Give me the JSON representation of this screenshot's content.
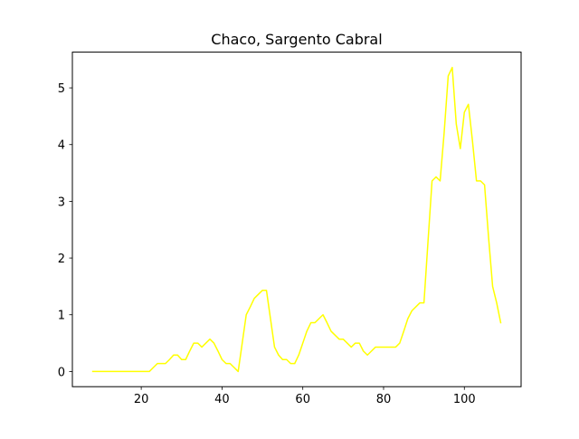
{
  "chart_data": {
    "type": "line",
    "title": "Chaco, Sargento Cabral",
    "xlabel": "",
    "ylabel": "",
    "xlim": [
      2.95,
      114.05
    ],
    "ylim": [
      -0.268,
      5.63
    ],
    "xticks": [
      20,
      40,
      60,
      80,
      100
    ],
    "yticks": [
      0,
      1,
      2,
      3,
      4,
      5
    ],
    "xtick_labels": [
      "20",
      "40",
      "60",
      "80",
      "100"
    ],
    "ytick_labels": [
      "0",
      "1",
      "2",
      "3",
      "4",
      "5"
    ],
    "grid": false,
    "series": [
      {
        "color": "#ffff00",
        "x": [
          8,
          9,
          10,
          11,
          12,
          13,
          14,
          15,
          16,
          17,
          18,
          19,
          20,
          21,
          22,
          23,
          24,
          25,
          26,
          27,
          28,
          29,
          30,
          31,
          32,
          33,
          34,
          35,
          36,
          37,
          38,
          39,
          40,
          41,
          42,
          43,
          44,
          45,
          46,
          47,
          48,
          49,
          50,
          51,
          52,
          53,
          54,
          55,
          56,
          57,
          58,
          59,
          60,
          61,
          62,
          63,
          64,
          65,
          66,
          67,
          68,
          69,
          70,
          71,
          72,
          73,
          74,
          75,
          76,
          77,
          78,
          79,
          80,
          81,
          82,
          83,
          84,
          85,
          86,
          87,
          88,
          89,
          90,
          91,
          92,
          93,
          94,
          95,
          96,
          97,
          98,
          99,
          100,
          101,
          102,
          103,
          104,
          105,
          106,
          107,
          108,
          109
        ],
        "y": [
          0,
          0,
          0,
          0,
          0,
          0,
          0,
          0,
          0,
          0,
          0,
          0,
          0,
          0,
          0,
          0.07,
          0.14,
          0.14,
          0.14,
          0.21,
          0.29,
          0.29,
          0.21,
          0.21,
          0.36,
          0.5,
          0.5,
          0.43,
          0.5,
          0.57,
          0.5,
          0.36,
          0.21,
          0.14,
          0.14,
          0.07,
          0,
          0.5,
          1,
          1.14,
          1.29,
          1.36,
          1.43,
          1.43,
          0.93,
          0.43,
          0.29,
          0.21,
          0.21,
          0.14,
          0.14,
          0.29,
          0.5,
          0.71,
          0.86,
          0.86,
          0.93,
          1,
          0.86,
          0.71,
          0.64,
          0.57,
          0.57,
          0.5,
          0.43,
          0.5,
          0.5,
          0.36,
          0.29,
          0.36,
          0.43,
          0.43,
          0.43,
          0.43,
          0.43,
          0.43,
          0.5,
          0.71,
          0.93,
          1.07,
          1.14,
          1.21,
          1.21,
          2.29,
          3.36,
          3.43,
          3.36,
          4.21,
          5.21,
          5.36,
          4.36,
          3.93,
          4.57,
          4.71,
          4.07,
          3.36,
          3.36,
          3.29,
          2.36,
          1.5,
          1.21,
          0.86
        ]
      }
    ]
  }
}
